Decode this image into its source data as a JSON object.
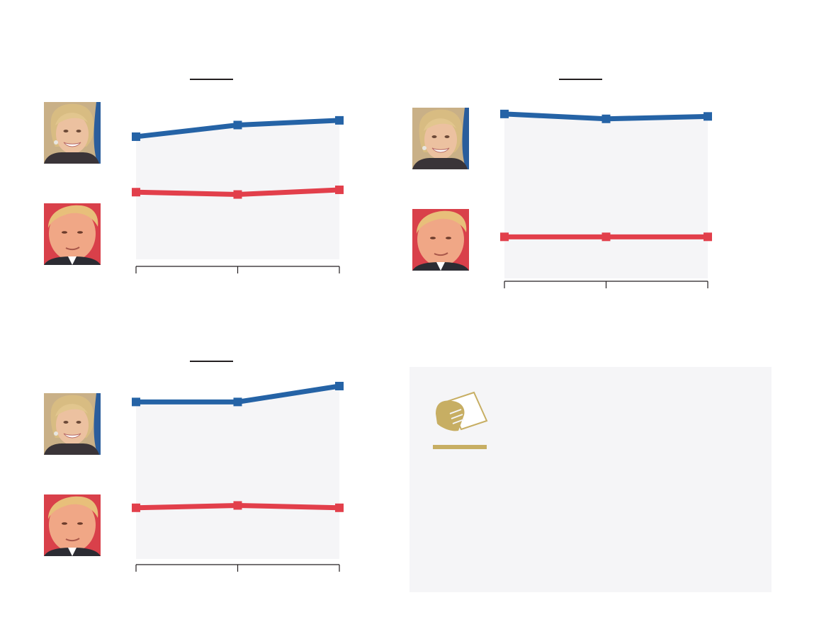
{
  "colors": {
    "clinton": "#2563a6",
    "trump": "#e23f4b",
    "plot_background": "#f5f5f7",
    "ballot_icon": "#c7ae63"
  },
  "chart_data": [
    {
      "type": "line",
      "categories": [
        "",
        "",
        ""
      ],
      "series": [
        {
          "portrait": "clinton-portrait",
          "color": "#2563a6",
          "values": [
            46,
            48,
            48.8
          ]
        },
        {
          "portrait": "trump-portrait",
          "color": "#e23f4b",
          "values": [
            36.5,
            36.1,
            36.9
          ]
        }
      ],
      "ylim": [
        25,
        50
      ],
      "grid": false
    },
    {
      "type": "line",
      "categories": [
        "",
        "",
        ""
      ],
      "series": [
        {
          "portrait": "clinton-portrait",
          "color": "#2563a6",
          "values": [
            49.9,
            49.1,
            49.5
          ]
        },
        {
          "portrait": "trump-portrait",
          "color": "#e23f4b",
          "values": [
            29.8,
            29.8,
            29.8
          ]
        }
      ],
      "ylim": [
        23,
        50
      ],
      "grid": false
    },
    {
      "type": "line",
      "categories": [
        "",
        "",
        ""
      ],
      "series": [
        {
          "portrait": "clinton-portrait",
          "color": "#2563a6",
          "values": [
            46.7,
            46.7,
            49.4
          ]
        },
        {
          "portrait": "trump-portrait",
          "color": "#e23f4b",
          "values": [
            28.7,
            29.1,
            28.7
          ]
        }
      ],
      "ylim": [
        20,
        50
      ],
      "grid": false
    }
  ],
  "info_panel": {
    "icon": "ballot-box-icon"
  }
}
